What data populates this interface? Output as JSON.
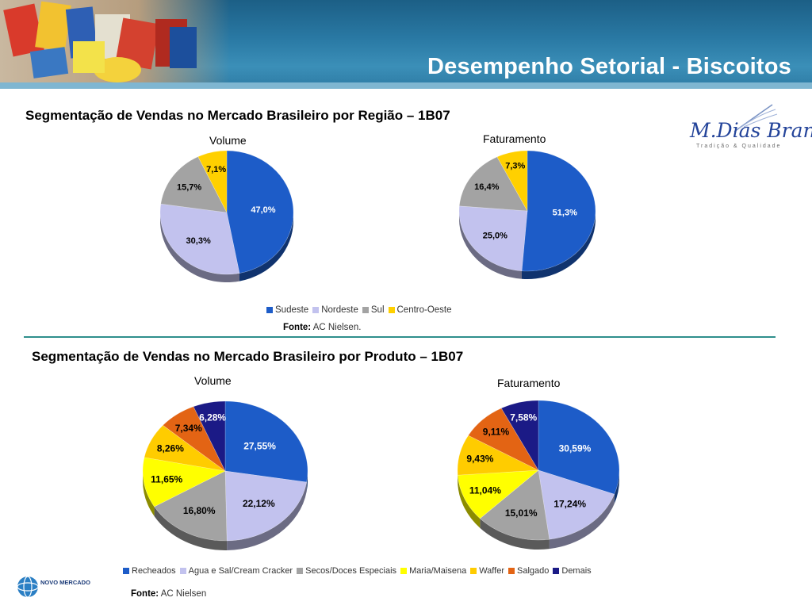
{
  "header": {
    "title": "Desempenho Setorial - Biscoitos"
  },
  "sections": [
    {
      "title": "Segmentação de Vendas no Mercado Brasileiro por Região – 1B07",
      "legend": [
        {
          "label": "Sudeste",
          "color": "#1d5cc8"
        },
        {
          "label": "Nordeste",
          "color": "#c2c2ee"
        },
        {
          "label": "Sul",
          "color": "#a3a3a3"
        },
        {
          "label": "Centro-Oeste",
          "color": "#ffd000"
        }
      ],
      "source_label": "Fonte:",
      "source_value": "AC Nielsen."
    },
    {
      "title": "Segmentação de Vendas  no Mercado Brasileiro por Produto – 1B07",
      "legend": [
        {
          "label": "Recheados",
          "color": "#1d5cc8"
        },
        {
          "label": "Agua e Sal/Cream Cracker",
          "color": "#c2c2ee"
        },
        {
          "label": "Secos/Doces Especiais",
          "color": "#a3a3a3"
        },
        {
          "label": "Maria/Maisena",
          "color": "#ffff00"
        },
        {
          "label": "Waffer",
          "color": "#ffcc00"
        },
        {
          "label": "Salgado",
          "color": "#e36414"
        },
        {
          "label": "Demais",
          "color": "#1b1a86"
        }
      ],
      "source_label": "Fonte:",
      "source_value": "AC Nielsen"
    }
  ],
  "logo": {
    "name": "M.Dias Branco",
    "tagline": "Tradição & Qualidade"
  },
  "footer_logo": {
    "text": "NOVO MERCADO"
  },
  "chart_data": [
    {
      "type": "pie",
      "title": "Volume",
      "categories": [
        "Sudeste",
        "Nordeste",
        "Sul",
        "Centro-Oeste"
      ],
      "values": [
        47.0,
        30.3,
        15.7,
        7.1
      ],
      "labels": [
        "47,0%",
        "30,3%",
        "15,7%",
        "7,1%"
      ],
      "colors": [
        "#1d5cc8",
        "#c2c2ee",
        "#a3a3a3",
        "#ffd000"
      ]
    },
    {
      "type": "pie",
      "title": "Faturamento",
      "categories": [
        "Sudeste",
        "Nordeste",
        "Sul",
        "Centro-Oeste"
      ],
      "values": [
        51.3,
        25.0,
        16.4,
        7.3
      ],
      "labels": [
        "51,3%",
        "25,0%",
        "16,4%",
        "7,3%"
      ],
      "colors": [
        "#1d5cc8",
        "#c2c2ee",
        "#a3a3a3",
        "#ffd000"
      ]
    },
    {
      "type": "pie",
      "title": "Volume",
      "categories": [
        "Recheados",
        "Agua e Sal/Cream Cracker",
        "Secos/Doces Especiais",
        "Maria/Maisena",
        "Waffer",
        "Salgado",
        "Demais"
      ],
      "values": [
        27.55,
        22.12,
        16.8,
        11.65,
        8.26,
        7.34,
        6.28
      ],
      "labels": [
        "27,55%",
        "22,12%",
        "16,80%",
        "11,65%",
        "8,26%",
        "7,34%",
        "6,28%"
      ],
      "colors": [
        "#1d5cc8",
        "#c2c2ee",
        "#a3a3a3",
        "#ffff00",
        "#ffcc00",
        "#e36414",
        "#1b1a86"
      ]
    },
    {
      "type": "pie",
      "title": "Faturamento",
      "categories": [
        "Recheados",
        "Agua e Sal/Cream Cracker",
        "Secos/Doces Especiais",
        "Maria/Maisena",
        "Waffer",
        "Salgado",
        "Demais"
      ],
      "values": [
        30.59,
        17.24,
        15.01,
        11.04,
        9.43,
        9.11,
        7.58
      ],
      "labels": [
        "30,59%",
        "17,24%",
        "15,01%",
        "11,04%",
        "9,43%",
        "9,11%",
        "7,58%"
      ],
      "colors": [
        "#1d5cc8",
        "#c2c2ee",
        "#a3a3a3",
        "#ffff00",
        "#ffcc00",
        "#e36414",
        "#1b1a86"
      ]
    }
  ]
}
